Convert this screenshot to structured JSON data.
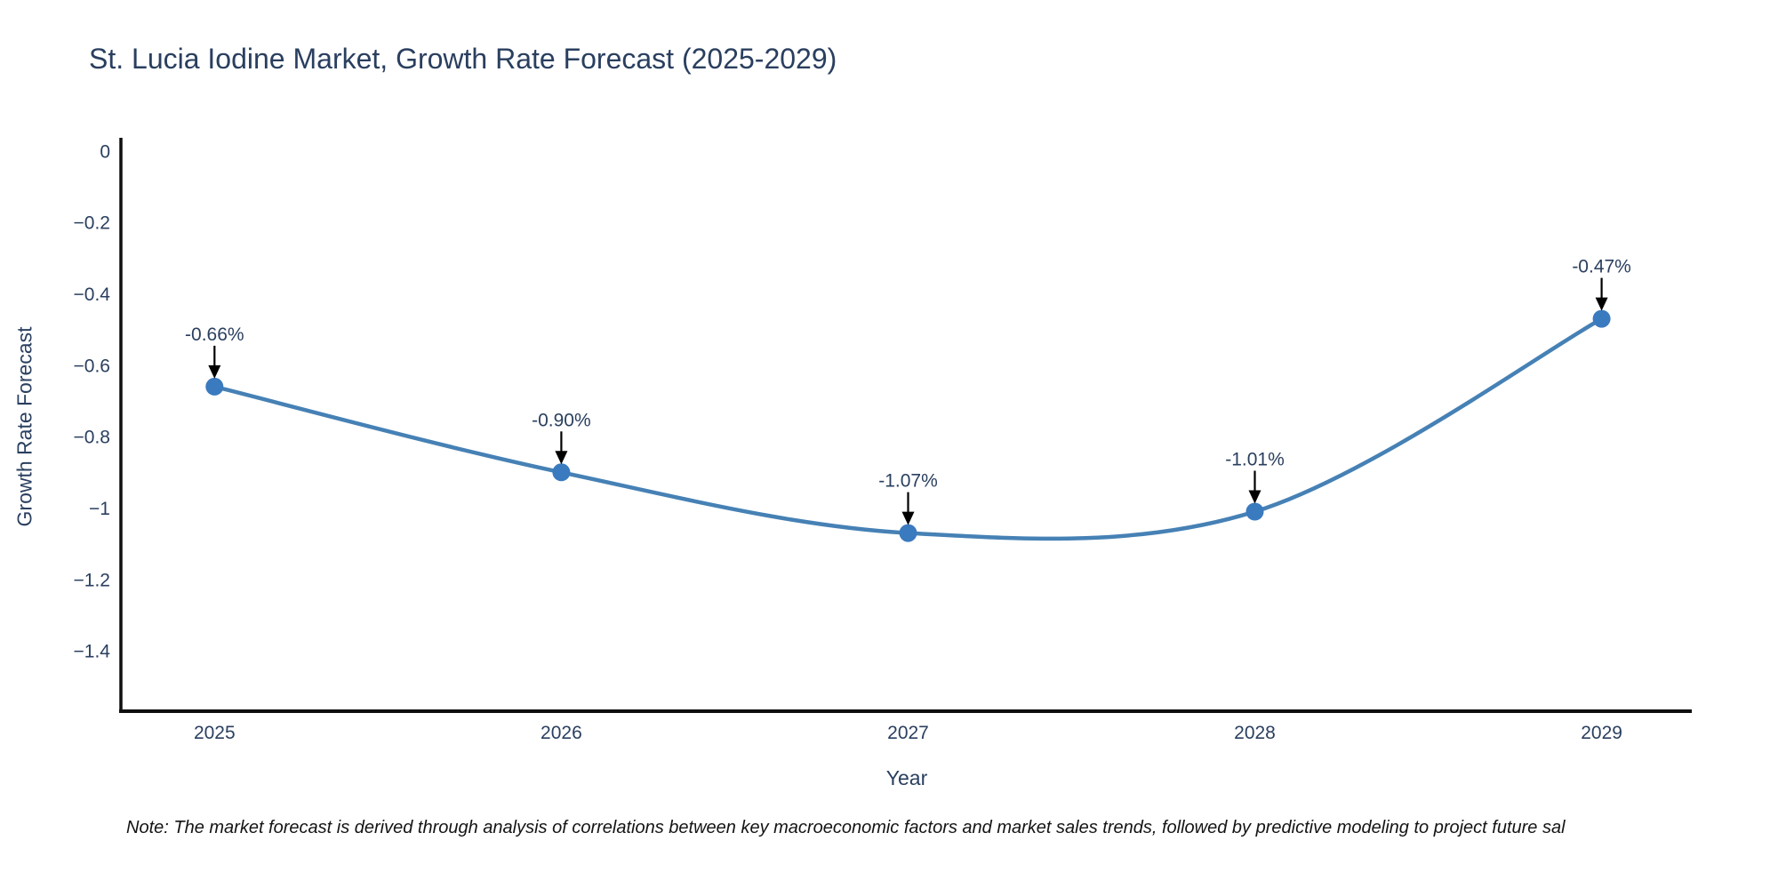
{
  "page": {
    "title": "St. Lucia Iodine Market, Growth Rate Forecast (2025-2029)",
    "note": "Note: The market forecast is derived through analysis of correlations between key macroeconomic factors and market sales trends, followed by predictive modeling to project future sal"
  },
  "chart_data": {
    "type": "line",
    "title": "St. Lucia Iodine Market, Growth Rate Forecast (2025-2029)",
    "xlabel": "Year",
    "ylabel": "Growth Rate Forecast",
    "x": [
      2025,
      2026,
      2027,
      2028,
      2029
    ],
    "series": [
      {
        "name": "Growth Rate Forecast",
        "values": [
          -0.66,
          -0.9,
          -1.07,
          -1.01,
          -0.47
        ],
        "point_labels": [
          "-0.66%",
          "-0.90%",
          "-1.07%",
          "-1.01%",
          "-0.47%"
        ]
      }
    ],
    "xtick_labels": [
      "2025",
      "2026",
      "2027",
      "2028",
      "2029"
    ],
    "ytick_values": [
      0,
      -0.2,
      -0.4,
      -0.6,
      -0.8,
      -1,
      -1.2,
      -1.4
    ],
    "ytick_labels": [
      "0",
      "−0.2",
      "−0.4",
      "−0.6",
      "−0.8",
      "−1",
      "−1.2",
      "−1.4"
    ],
    "xlim": [
      2024.73,
      2029.26
    ],
    "ylim": [
      -1.569,
      0.037
    ],
    "grid": false,
    "legend": "none",
    "line_style": "smooth-spline",
    "annotation_style": "value-label-with-down-arrow",
    "colors": {
      "line": "#4681b5",
      "marker": "#3a7abf",
      "axis_line": "#0f0f0f",
      "tick_text": "#2a3f5f",
      "title_text": "#2a3f5f",
      "annotation_text": "#2a3f5f",
      "arrow": "#000000",
      "note_text": "#141414",
      "background": "#ffffff"
    }
  }
}
